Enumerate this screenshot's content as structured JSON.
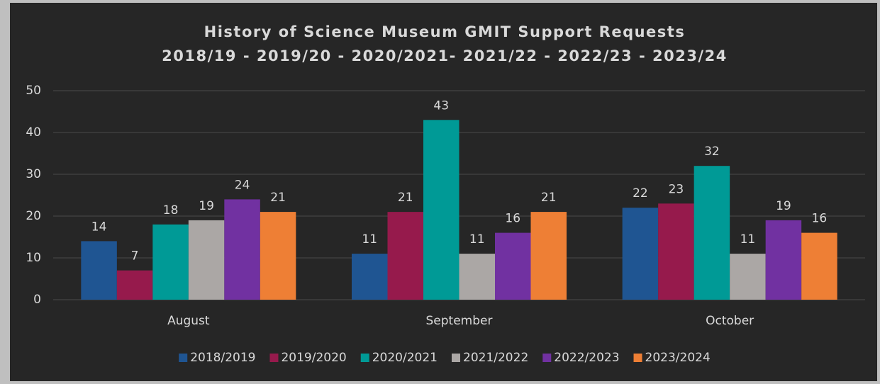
{
  "chart_data": {
    "type": "bar",
    "title": "History of Science Museum GMIT Support Requests",
    "subtitle": "2018/19 - 2019/20 - 2020/2021- 2021/22 - 2022/23 - 2023/24",
    "categories": [
      "August",
      "September",
      "October"
    ],
    "series": [
      {
        "name": "2018/2019",
        "color": "#1f5592",
        "values": [
          14,
          11,
          22
        ]
      },
      {
        "name": "2019/2020",
        "color": "#961a4c",
        "values": [
          7,
          21,
          23
        ]
      },
      {
        "name": "2020/2021",
        "color": "#009a96",
        "values": [
          18,
          43,
          32
        ]
      },
      {
        "name": "2021/2022",
        "color": "#aba7a5",
        "values": [
          19,
          11,
          11
        ]
      },
      {
        "name": "2022/2023",
        "color": "#7131a1",
        "values": [
          24,
          16,
          19
        ]
      },
      {
        "name": "2023/2024",
        "color": "#ee7f35",
        "values": [
          21,
          21,
          16
        ]
      }
    ],
    "ylim": [
      0,
      50
    ],
    "yticks": [
      0,
      10,
      20,
      30,
      40,
      50
    ],
    "grid": true,
    "legend": "bottom"
  }
}
